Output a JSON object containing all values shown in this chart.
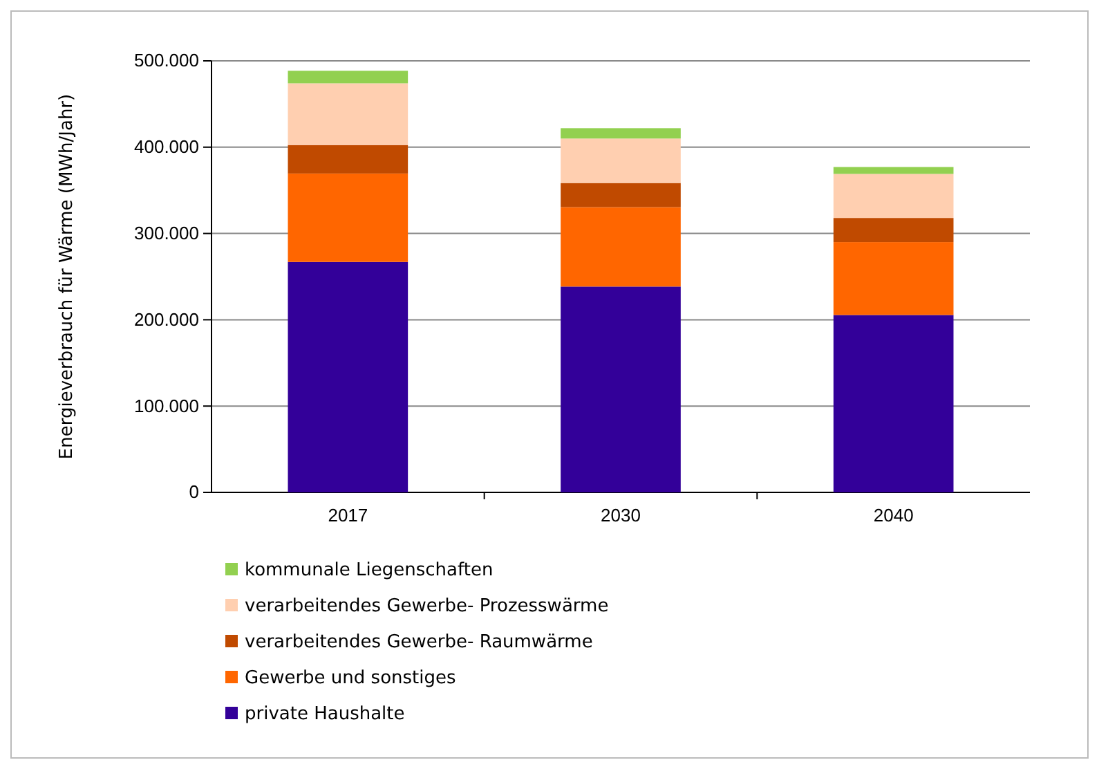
{
  "chart_data": {
    "type": "bar",
    "stacked": true,
    "ylabel": "Energieverbrauch für Wärme (MWh/Jahr)",
    "categories": [
      "2017",
      "2030",
      "2040"
    ],
    "series": [
      {
        "name": "private Haushalte",
        "color": "#330099",
        "values": [
          267000,
          238500,
          205500
        ]
      },
      {
        "name": "Gewerbe und sonstiges",
        "color": "#ff6600",
        "values": [
          102500,
          92000,
          84500
        ]
      },
      {
        "name": "verarbeitendes Gewerbe- Raumwärme",
        "color": "#c04a00",
        "values": [
          33000,
          28000,
          28000
        ]
      },
      {
        "name": "verarbeitendes Gewerbe- Prozesswärme",
        "color": "#ffcfb0",
        "values": [
          71500,
          51500,
          51000
        ]
      },
      {
        "name": "kommunale Liegenschaften",
        "color": "#92d050",
        "values": [
          14500,
          12000,
          8000
        ]
      }
    ],
    "ylim": [
      0,
      500000
    ],
    "yticks": [
      {
        "value": 0,
        "label": "0"
      },
      {
        "value": 100000,
        "label": "100.000"
      },
      {
        "value": 200000,
        "label": "200.000"
      },
      {
        "value": 300000,
        "label": "300.000"
      },
      {
        "value": 400000,
        "label": "400.000"
      },
      {
        "value": 500000,
        "label": "500.000"
      }
    ],
    "grid": "y",
    "legend": "bottom left"
  }
}
